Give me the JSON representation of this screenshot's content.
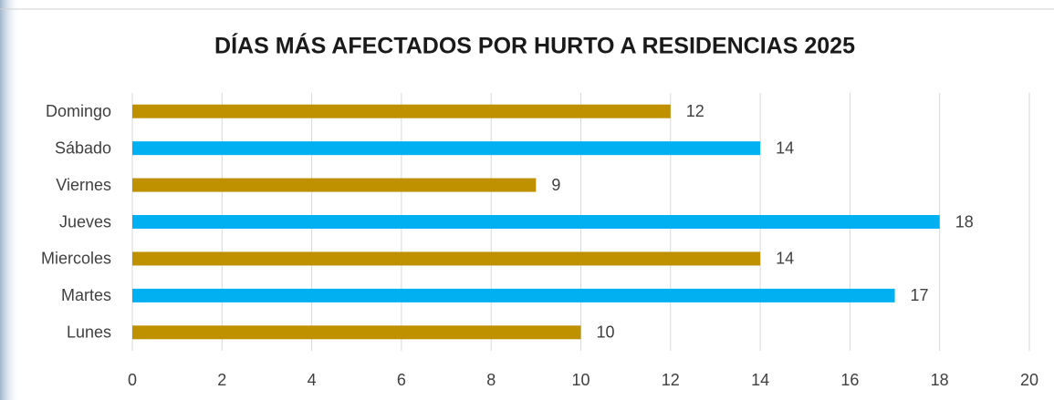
{
  "chart_data": {
    "type": "hbar",
    "title": "DÍAS MÁS AFECTADOS POR HURTO A RESIDENCIAS 2025",
    "categories": [
      "Lunes",
      "Martes",
      "Miercoles",
      "Jueves",
      "Viernes",
      "Sábado",
      "Domingo"
    ],
    "values": [
      10,
      17,
      14,
      18,
      9,
      14,
      12
    ],
    "colors": [
      "#bf9000",
      "#00b0f0",
      "#bf9000",
      "#00b0f0",
      "#bf9000",
      "#00b0f0",
      "#bf9000"
    ],
    "xlim": [
      0,
      20
    ],
    "xticks": [
      0,
      2,
      4,
      6,
      8,
      10,
      12,
      14,
      16,
      18,
      20
    ],
    "grid": true
  }
}
